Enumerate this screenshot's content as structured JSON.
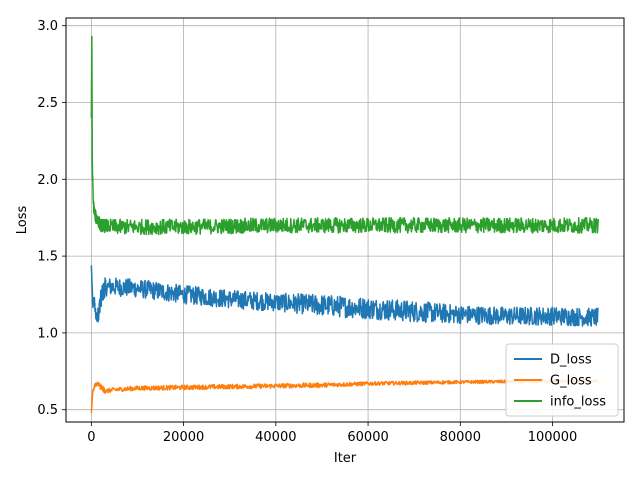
{
  "chart_data": {
    "type": "line",
    "title": "",
    "xlabel": "Iter",
    "ylabel": "Loss",
    "xlim": [
      -5500,
      115500
    ],
    "ylim": [
      0.42,
      3.05
    ],
    "grid": true,
    "legend_position": "bottom-right",
    "x_ticks": [
      0,
      20000,
      40000,
      60000,
      80000,
      100000
    ],
    "x_tick_labels": [
      "0",
      "20000",
      "40000",
      "60000",
      "80000",
      "100000"
    ],
    "y_ticks": [
      0.5,
      1.0,
      1.5,
      2.0,
      2.5,
      3.0
    ],
    "y_tick_labels": [
      "0.5",
      "1.0",
      "1.5",
      "2.0",
      "2.5",
      "3.0"
    ],
    "series": [
      {
        "name": "D_loss",
        "color": "#1f77b4",
        "x": [
          0,
          300,
          600,
          1000,
          1500,
          2000,
          3000,
          5000,
          10000,
          20000,
          30000,
          40000,
          50000,
          60000,
          70000,
          80000,
          90000,
          100000,
          110000
        ],
        "y": [
          1.44,
          1.18,
          1.22,
          1.1,
          1.12,
          1.22,
          1.3,
          1.3,
          1.29,
          1.25,
          1.22,
          1.2,
          1.18,
          1.16,
          1.14,
          1.12,
          1.11,
          1.11,
          1.1
        ],
        "noise": [
          0.0,
          0.03,
          0.03,
          0.03,
          0.05,
          0.06,
          0.06,
          0.06,
          0.06,
          0.06,
          0.06,
          0.06,
          0.07,
          0.07,
          0.07,
          0.06,
          0.06,
          0.06,
          0.06
        ]
      },
      {
        "name": "G_loss",
        "color": "#ff7f0e",
        "x": [
          0,
          300,
          800,
          1500,
          2000,
          3000,
          5000,
          10000,
          20000,
          30000,
          40000,
          50000,
          60000,
          70000,
          80000,
          90000,
          100000,
          110000
        ],
        "y": [
          0.48,
          0.62,
          0.66,
          0.67,
          0.65,
          0.62,
          0.63,
          0.64,
          0.645,
          0.65,
          0.655,
          0.66,
          0.67,
          0.675,
          0.68,
          0.683,
          0.685,
          0.687
        ],
        "noise": [
          0.0,
          0.01,
          0.01,
          0.01,
          0.02,
          0.015,
          0.015,
          0.015,
          0.015,
          0.015,
          0.015,
          0.015,
          0.012,
          0.012,
          0.01,
          0.01,
          0.01,
          0.01
        ]
      },
      {
        "name": "info_loss",
        "color": "#2ca02c",
        "x": [
          0,
          100,
          200,
          400,
          700,
          1000,
          1500,
          2000,
          5000,
          20000,
          40000,
          60000,
          80000,
          100000,
          110000
        ],
        "y": [
          2.4,
          2.93,
          2.1,
          1.85,
          1.78,
          1.75,
          1.73,
          1.7,
          1.69,
          1.69,
          1.7,
          1.7,
          1.7,
          1.7,
          1.7
        ],
        "noise": [
          0.0,
          0.0,
          0.05,
          0.04,
          0.04,
          0.04,
          0.04,
          0.04,
          0.05,
          0.05,
          0.05,
          0.05,
          0.05,
          0.05,
          0.05
        ]
      }
    ]
  }
}
